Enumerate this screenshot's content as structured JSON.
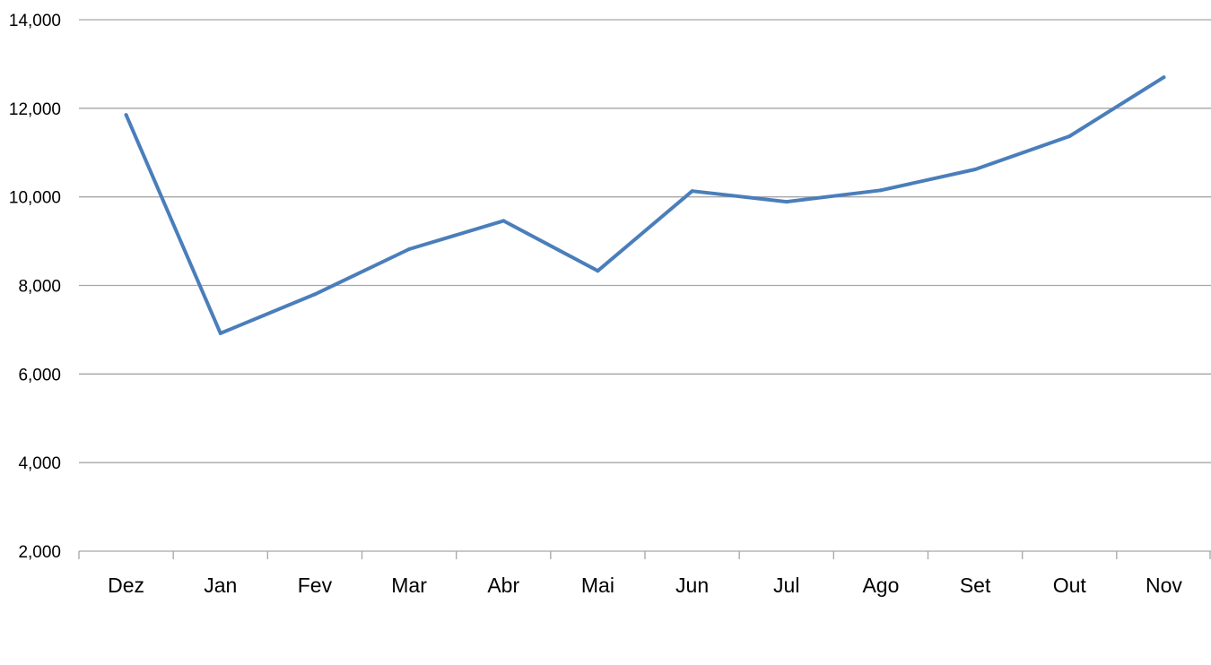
{
  "chart_data": {
    "type": "line",
    "categories": [
      "Dez",
      "Jan",
      "Fev",
      "Mar",
      "Abr",
      "Mai",
      "Jun",
      "Jul",
      "Ago",
      "Set",
      "Out",
      "Nov"
    ],
    "series": [
      {
        "values": [
          11850,
          6920,
          7800,
          8820,
          9460,
          8330,
          10130,
          9890,
          10150,
          10620,
          11370,
          12700
        ]
      }
    ],
    "ylim": [
      2000,
      14000
    ],
    "yticks": [
      2000,
      4000,
      6000,
      8000,
      10000,
      12000,
      14000
    ],
    "ytick_labels": [
      "2,000",
      "4,000",
      "6,000",
      "8,000",
      "10,000",
      "12,000",
      "14,000"
    ],
    "title": "",
    "xlabel": "",
    "ylabel": "",
    "grid": true,
    "legend": "none",
    "colors": {
      "series": "#4a7ebb",
      "grid": "#a6a6a6",
      "text": "#000000"
    }
  }
}
